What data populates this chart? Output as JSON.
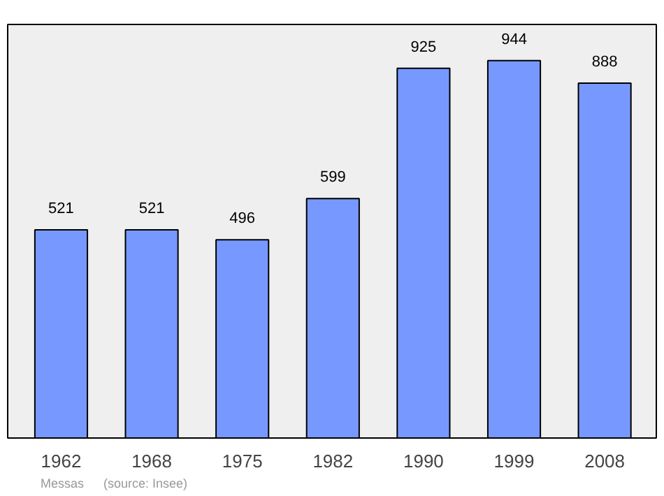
{
  "chart_data": {
    "type": "bar",
    "categories": [
      "1962",
      "1968",
      "1975",
      "1982",
      "1990",
      "1999",
      "2008"
    ],
    "values": [
      521,
      521,
      496,
      599,
      925,
      944,
      888
    ],
    "color": "#7799ff",
    "data_labels": true,
    "grid": false,
    "tick_labels": "x",
    "annotations": [
      "Messas",
      "(source: Insee)"
    ]
  }
}
